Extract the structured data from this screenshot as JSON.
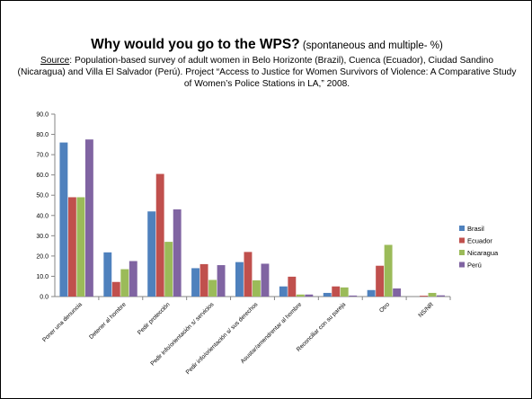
{
  "slide": {
    "title_bold": "Why would you go to the WPS?",
    "title_rest": " (spontaneous and multiple- %)",
    "source_label": "Source",
    "source_text": ": Population-based survey of adult women in Belo Horizonte (Brazil), Cuenca (Ecuador), Ciudad Sandino (Nicaragua) and Villa El Salvador (Perú). Project “Access to Justice for Women Survivors of Violence: A Comparative Study of Women’s Police Stations in LA,” 2008."
  },
  "chart_data": {
    "type": "bar",
    "title": "",
    "xlabel": "",
    "ylabel": "",
    "ylim": [
      0,
      90
    ],
    "ytick_step": 10,
    "ytick_format": "0.0",
    "grid": false,
    "legend_position": "right",
    "categories": [
      "Poner una denuncia",
      "Detener al hombre",
      "Pedir protección",
      "Pedir info/orientación s/ servicios",
      "Pedir info/orientación s/ sus derechos",
      "Asustar/amendrentar al hombre",
      "Reconciliar con su pareja",
      "Otro",
      "NS/NR"
    ],
    "series": [
      {
        "name": "Brasil",
        "color": "#4F81BD",
        "values": [
          76.0,
          21.8,
          42.0,
          14.0,
          17.0,
          5.0,
          1.8,
          3.2,
          0.0
        ]
      },
      {
        "name": "Ecuador",
        "color": "#C0504D",
        "values": [
          49.0,
          7.2,
          60.5,
          16.0,
          22.0,
          9.8,
          5.0,
          15.2,
          0.4
        ]
      },
      {
        "name": "Nicaragua",
        "color": "#9BBB59",
        "values": [
          49.0,
          13.5,
          27.0,
          8.2,
          8.0,
          1.0,
          4.5,
          25.5,
          1.8
        ]
      },
      {
        "name": "Perú",
        "color": "#8064A2",
        "values": [
          77.5,
          17.5,
          43.0,
          15.5,
          16.2,
          1.0,
          0.5,
          4.0,
          0.6
        ]
      }
    ]
  }
}
